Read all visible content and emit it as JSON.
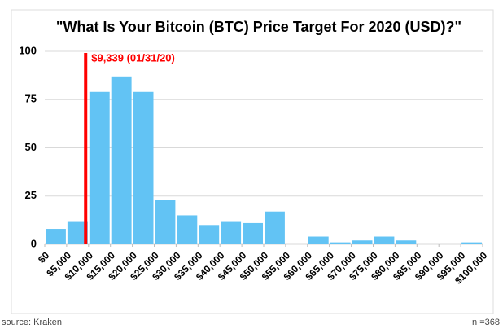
{
  "chart_data": {
    "type": "histogram",
    "title": "\"What Is Your Bitcoin (BTC) Price Target For 2020 (USD)?\"",
    "bins": [
      0,
      5000,
      10000,
      15000,
      20000,
      25000,
      30000,
      35000,
      40000,
      45000,
      50000,
      55000,
      60000,
      65000,
      70000,
      75000,
      80000,
      85000,
      90000,
      95000,
      100000
    ],
    "values": [
      8,
      12,
      79,
      87,
      79,
      23,
      15,
      10,
      12,
      11,
      17,
      0,
      4,
      1,
      2,
      4,
      2,
      0,
      0,
      1
    ],
    "color": "#62c3f4",
    "xlim": [
      0,
      100000
    ],
    "xticks": [
      {
        "value": 0,
        "label": "$0"
      },
      {
        "value": 5000,
        "label": "$5,000"
      },
      {
        "value": 10000,
        "label": "$10,000"
      },
      {
        "value": 15000,
        "label": "$15,000"
      },
      {
        "value": 20000,
        "label": "$20,000"
      },
      {
        "value": 25000,
        "label": "$25,000"
      },
      {
        "value": 30000,
        "label": "$30,000"
      },
      {
        "value": 35000,
        "label": "$35,000"
      },
      {
        "value": 40000,
        "label": "$40,000"
      },
      {
        "value": 45000,
        "label": "$45,000"
      },
      {
        "value": 50000,
        "label": "$50,000"
      },
      {
        "value": 55000,
        "label": "$55,000"
      },
      {
        "value": 60000,
        "label": "$60,000"
      },
      {
        "value": 65000,
        "label": "$65,000"
      },
      {
        "value": 70000,
        "label": "$70,000"
      },
      {
        "value": 75000,
        "label": "$75,000"
      },
      {
        "value": 80000,
        "label": "$80,000"
      },
      {
        "value": 85000,
        "label": "$85,000"
      },
      {
        "value": 90000,
        "label": "$90,000"
      },
      {
        "value": 95000,
        "label": "$95,000"
      },
      {
        "value": 100000,
        "label": "$100,000"
      }
    ],
    "ylim": [
      0,
      100
    ],
    "yticks": [
      0,
      25,
      50,
      75,
      100
    ],
    "grid": true,
    "annotations": [
      {
        "x": 9339,
        "label": "$9,339 (01/31/20)",
        "color": "#ff0000"
      }
    ],
    "source": "source: Kraken",
    "note": "n =368"
  }
}
